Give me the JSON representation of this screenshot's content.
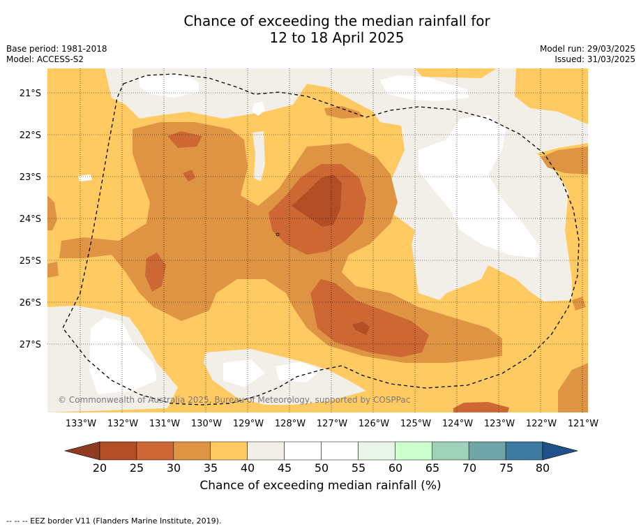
{
  "header": {
    "title_line1": "Chance of exceeding the median rainfall for",
    "title_line2": "12 to 18 April 2025",
    "base_period": "Base period: 1981-2018",
    "model": "Model: ACCESS-S2",
    "model_run": "Model run: 29/03/2025",
    "issued": "Issued: 31/03/2025"
  },
  "map": {
    "lat_labels": [
      "21°S",
      "22°S",
      "23°S",
      "24°S",
      "25°S",
      "26°S",
      "27°S"
    ],
    "lon_labels": [
      "133°W",
      "132°W",
      "131°W",
      "130°W",
      "129°W",
      "128°W",
      "127°W",
      "126°W",
      "125°W",
      "124°W",
      "123°W",
      "122°W",
      "121°W"
    ],
    "copyright": "© Commonwealth of Australia 2025, Bureau of Meteorology, supported by COSPPac",
    "eez_legend": "--  --  -- EEZ border V11 (Flanders Marine Institute, 2019)."
  },
  "colorbar": {
    "ticks": [
      "20",
      "25",
      "30",
      "35",
      "40",
      "45",
      "50",
      "55",
      "60",
      "65",
      "70",
      "75",
      "80"
    ],
    "label": "Chance of exceeding median rainfall (%)",
    "colors": [
      "#b24e26",
      "#cd6834",
      "#df9444",
      "#ffca62",
      "#f2eee8",
      "#ffffff",
      "#ffffff",
      "#eaf5e9",
      "#ccffcc",
      "#9dd1ba",
      "#6fa5a9",
      "#3e7aa1"
    ],
    "low_extend_color": "#8e3b22",
    "high_extend_color": "#1f5289"
  },
  "palette": {
    "c20_25": "#b24e26",
    "c25_30": "#cd6834",
    "c30_35": "#df9444",
    "c35_40": "#ffca62",
    "c40_45": "#f2eee8",
    "c45_55": "#ffffff"
  }
}
